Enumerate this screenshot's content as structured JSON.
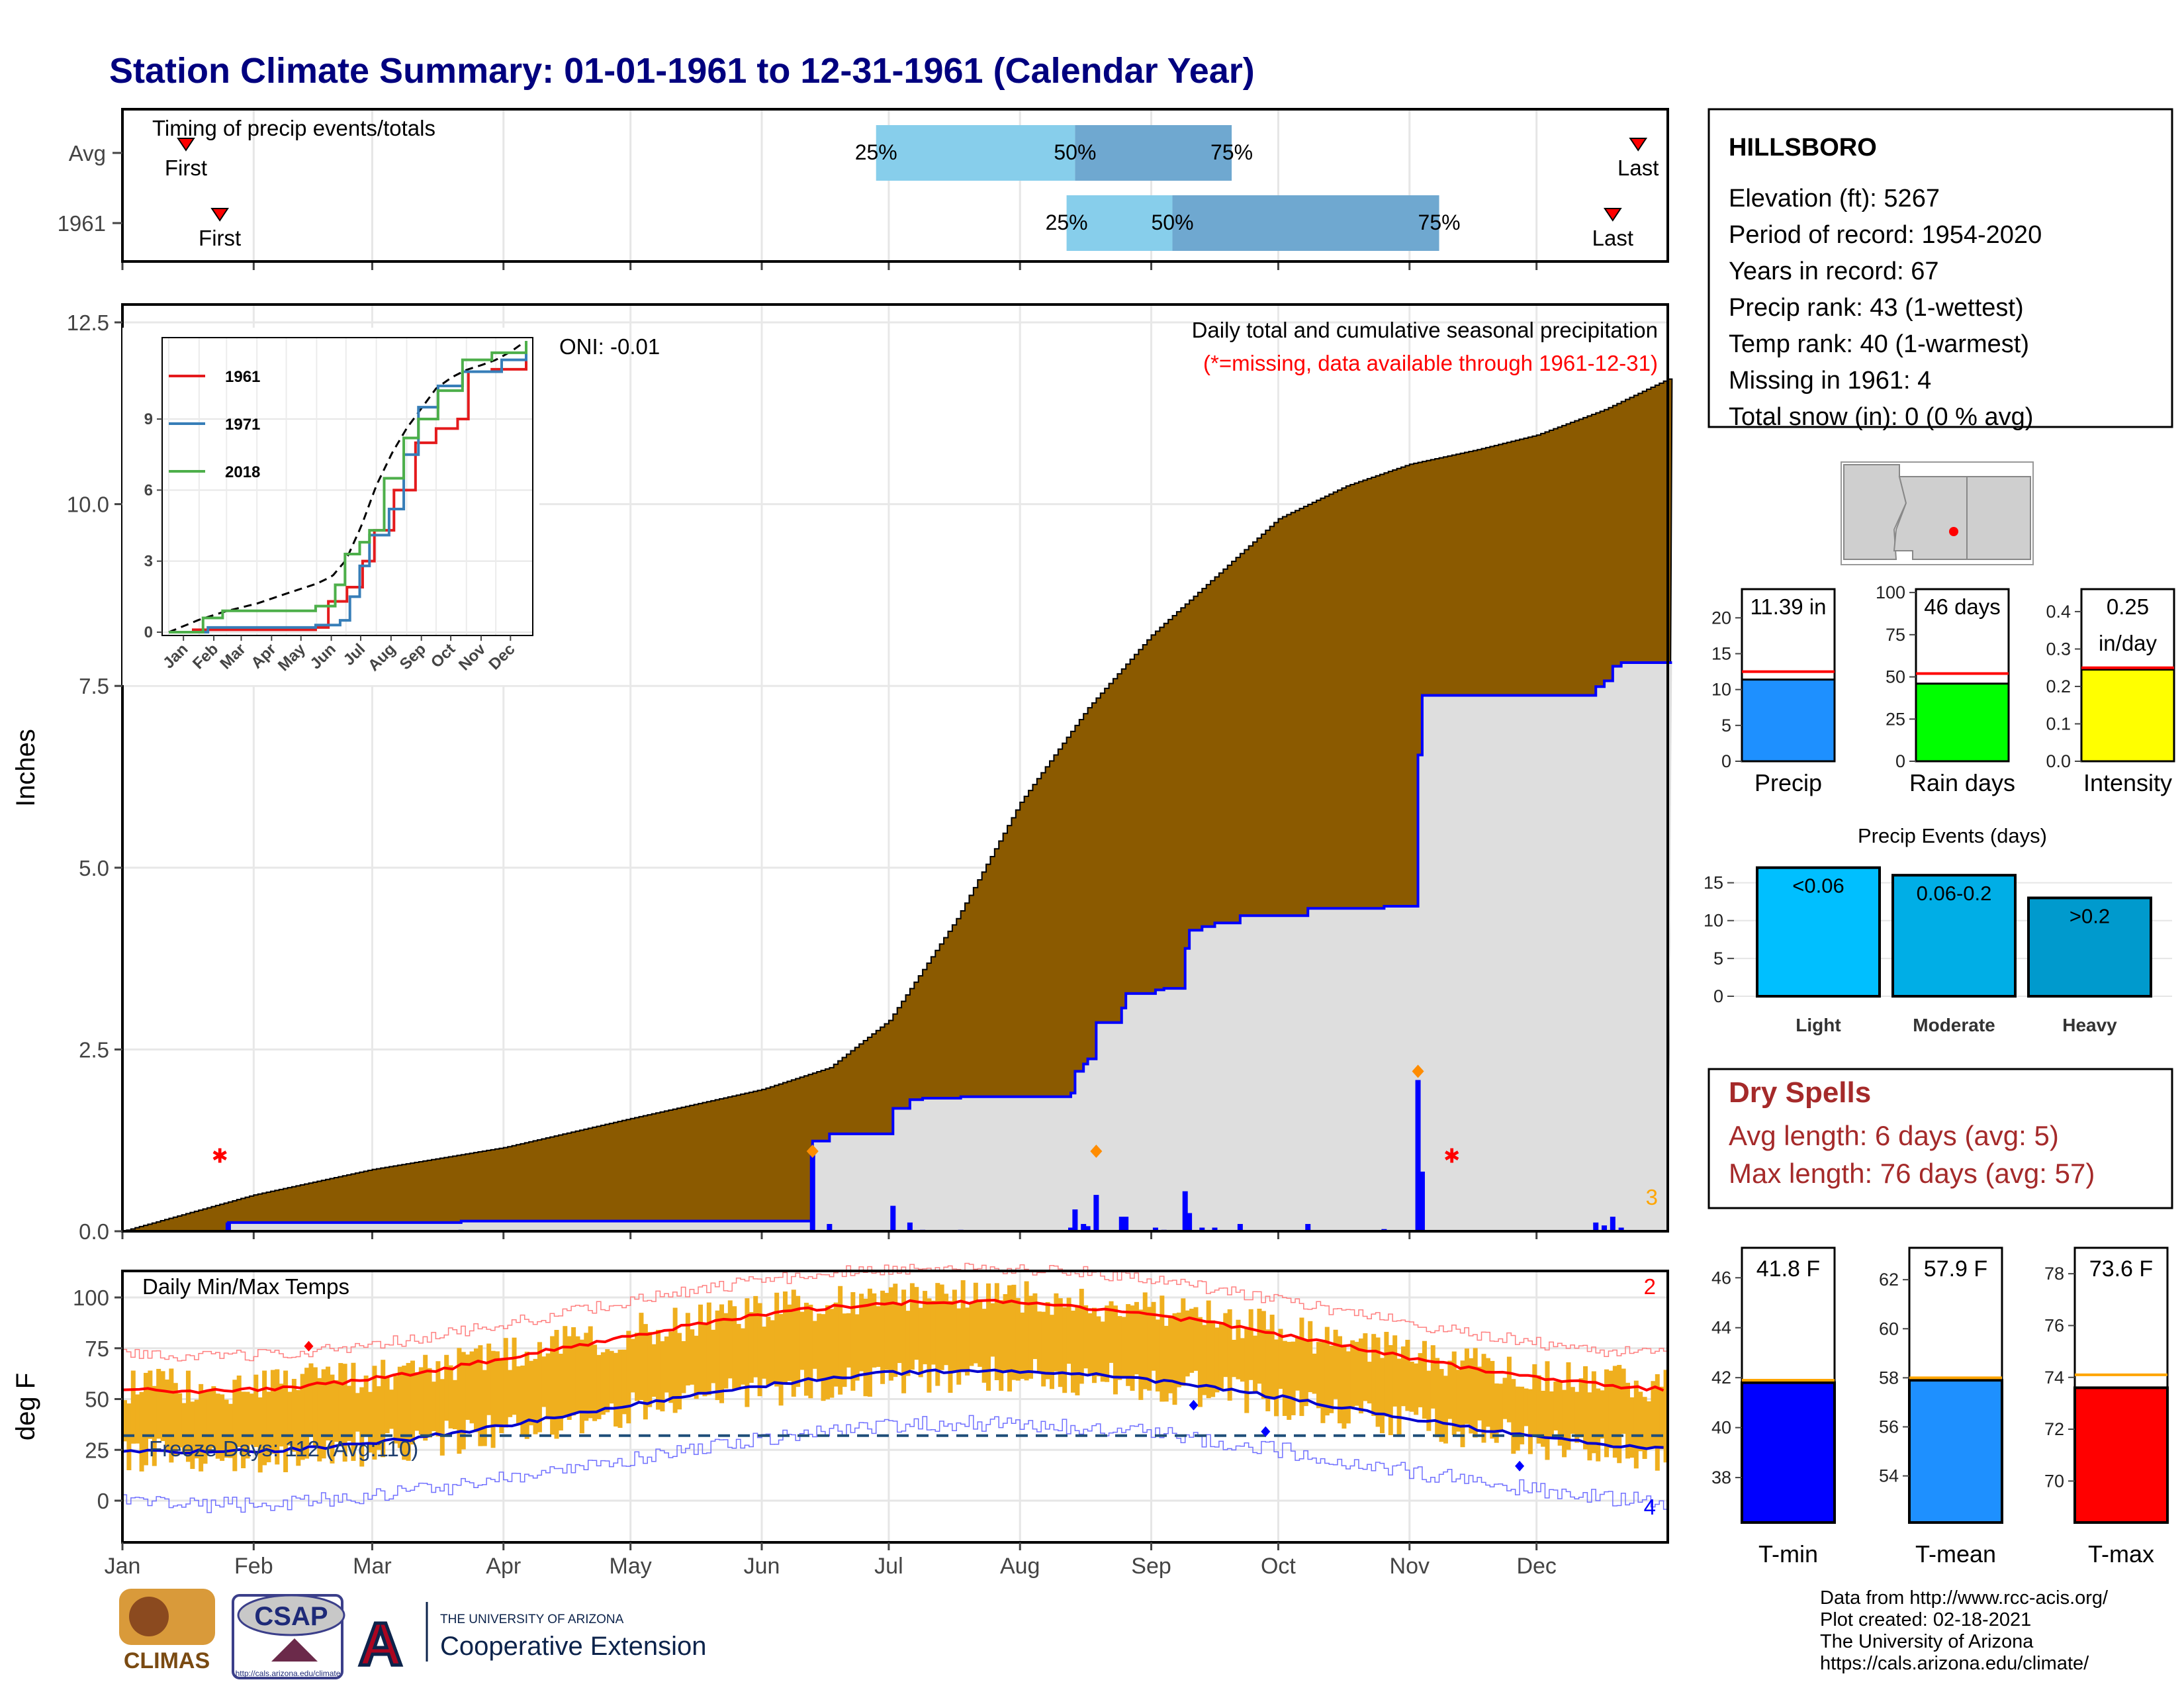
{
  "title": "Station Climate Summary: 01-01-1961 to 12-31-1961 (Calendar Year)",
  "timing": {
    "label": "Timing of precip events/totals",
    "rows": [
      {
        "label": "Avg",
        "first_day": 15,
        "last_day": 358,
        "q25_day": 178,
        "q50_day": 225,
        "q75_day": 262
      },
      {
        "label": "1961",
        "first_day": 23,
        "last_day": 352,
        "q25_day": 223,
        "q50_day": 248,
        "q75_day": 311
      }
    ],
    "first_text": "First",
    "last_text": "Last",
    "q_labels": [
      "25%",
      "50%",
      "75%"
    ],
    "colors": {
      "light": "#87ceeb",
      "dark": "#6fa8d0",
      "marker": "#ff0000"
    }
  },
  "precip_panel": {
    "ylabel": "Inches",
    "yticks": [
      "0.0",
      "2.5",
      "5.0",
      "7.5",
      "10.0",
      "12.5"
    ],
    "ymax": 12.5,
    "oni": "ONI: -0.01",
    "note1": "Daily total and cumulative seasonal precipitation",
    "note2": "(*=missing, data available through 1961-12-31)",
    "corner": "3",
    "missing_marker": "✱",
    "missing_days": [
      23,
      314
    ],
    "colors": {
      "avg_fill": "#8b5a00",
      "obs_fill": "#dedede",
      "obs_line": "#0000ff",
      "bar": "#0000ff",
      "diamond": "#ff8c00",
      "wet": "#228b22"
    }
  },
  "inset": {
    "years": [
      "1961",
      "1971",
      "2018"
    ],
    "colors": [
      "#e41a1c",
      "#377eb8",
      "#4daf4a"
    ],
    "yticks": [
      "0",
      "3",
      "6",
      "9"
    ],
    "months": [
      "Jan",
      "Feb",
      "Mar",
      "Apr",
      "May",
      "Jun",
      "Jul",
      "Aug",
      "Sep",
      "Oct",
      "Nov",
      "Dec"
    ]
  },
  "temp_panel": {
    "ylabel": "deg F",
    "label": "Daily Min/Max Temps",
    "yticks": [
      "0",
      "25",
      "50",
      "75",
      "100"
    ],
    "freeze": "Freeze Days: 112 (Avg:110)",
    "freeze_line": 32,
    "corner_top": "2",
    "corner_bottom": "4",
    "colors": {
      "bar": "#efaf1e",
      "max": "#ff0000",
      "min": "#0000cd",
      "freeze": "#1f4e79"
    }
  },
  "months": [
    "Jan",
    "Feb",
    "Mar",
    "Apr",
    "May",
    "Jun",
    "Jul",
    "Aug",
    "Sep",
    "Oct",
    "Nov",
    "Dec"
  ],
  "station": {
    "name": "HILLSBORO",
    "lines": [
      "Elevation (ft): 5267",
      "Period of record: 1954-2020",
      "Years in record: 67",
      "Precip rank: 43 (1-wettest)",
      "Temp rank: 40 (1-warmest)",
      "Missing in 1961: 4",
      "Total snow (in): 0 (0 % avg)"
    ]
  },
  "summary_bars": [
    {
      "label": "Precip",
      "text": [
        "11.39 in"
      ],
      "value": 11.39,
      "avg": 12.5,
      "min": 0,
      "max": 24,
      "ticks": [
        "0",
        "5",
        "10",
        "15",
        "20"
      ],
      "tickvals": [
        0,
        5,
        10,
        15,
        20
      ],
      "color": "#1e90ff"
    },
    {
      "label": "Rain days",
      "text": [
        "46 days"
      ],
      "value": 46,
      "avg": 52,
      "min": 0,
      "max": 102,
      "ticks": [
        "0",
        "25",
        "50",
        "75",
        "100"
      ],
      "tickvals": [
        0,
        25,
        50,
        75,
        100
      ],
      "color": "#00ff00"
    },
    {
      "label": "Intensity",
      "text": [
        "0.25",
        "in/day"
      ],
      "value": 0.245,
      "avg": 0.25,
      "min": 0,
      "max": 0.46,
      "ticks": [
        "0.0",
        "0.1",
        "0.2",
        "0.3",
        "0.4"
      ],
      "tickvals": [
        0,
        0.1,
        0.2,
        0.3,
        0.4
      ],
      "color": "#ffff00"
    }
  ],
  "events": {
    "title": "Precip Events (days)",
    "bars": [
      {
        "label": "Light",
        "text": "<0.06",
        "value": 17,
        "color": "#00bfff"
      },
      {
        "label": "Moderate",
        "text": "0.06-0.2",
        "value": 16,
        "color": "#00aee6"
      },
      {
        "label": "Heavy",
        "text": ">0.2",
        "value": 13,
        "color": "#009acd"
      }
    ],
    "ticks": [
      "0",
      "5",
      "10",
      "15"
    ]
  },
  "dry_spells": {
    "title": "Dry Spells",
    "line1": "Avg length: 6 days (avg: 5)",
    "line2": "Max length: 76 days (avg: 57)"
  },
  "temp_bars": [
    {
      "label": "T-min",
      "text": "41.8 F",
      "value": 41.8,
      "avg": 41.9,
      "min": 36.2,
      "max": 47.2,
      "ticks": [
        "38",
        "40",
        "42",
        "44",
        "46"
      ],
      "tickvals": [
        38,
        40,
        42,
        44,
        46
      ],
      "color": "#0000ff"
    },
    {
      "label": "T-mean",
      "text": "57.9 F",
      "value": 57.9,
      "avg": 58.0,
      "min": 52.1,
      "max": 63.3,
      "ticks": [
        "54",
        "56",
        "58",
        "60",
        "62"
      ],
      "tickvals": [
        54,
        56,
        58,
        60,
        62
      ],
      "color": "#1e90ff"
    },
    {
      "label": "T-max",
      "text": "73.6 F",
      "value": 73.6,
      "avg": 74.1,
      "min": 68.4,
      "max": 79.0,
      "ticks": [
        "70",
        "72",
        "74",
        "76",
        "78"
      ],
      "tickvals": [
        70,
        72,
        74,
        76,
        78
      ],
      "color": "#ff0000"
    }
  ],
  "footer": {
    "lines": [
      "Data from http://www.rcc-acis.org/",
      "Plot created: 02-18-2021",
      "The University of Arizona",
      "https://cals.arizona.edu/climate/"
    ],
    "climas": "CLIMAS",
    "csap": "CSAP",
    "csap_url": "http://cals.arizona.edu/climate",
    "ua_small": "THE UNIVERSITY OF ARIZONA",
    "ua_big": "Cooperative Extension",
    "ua_letter": "A"
  }
}
